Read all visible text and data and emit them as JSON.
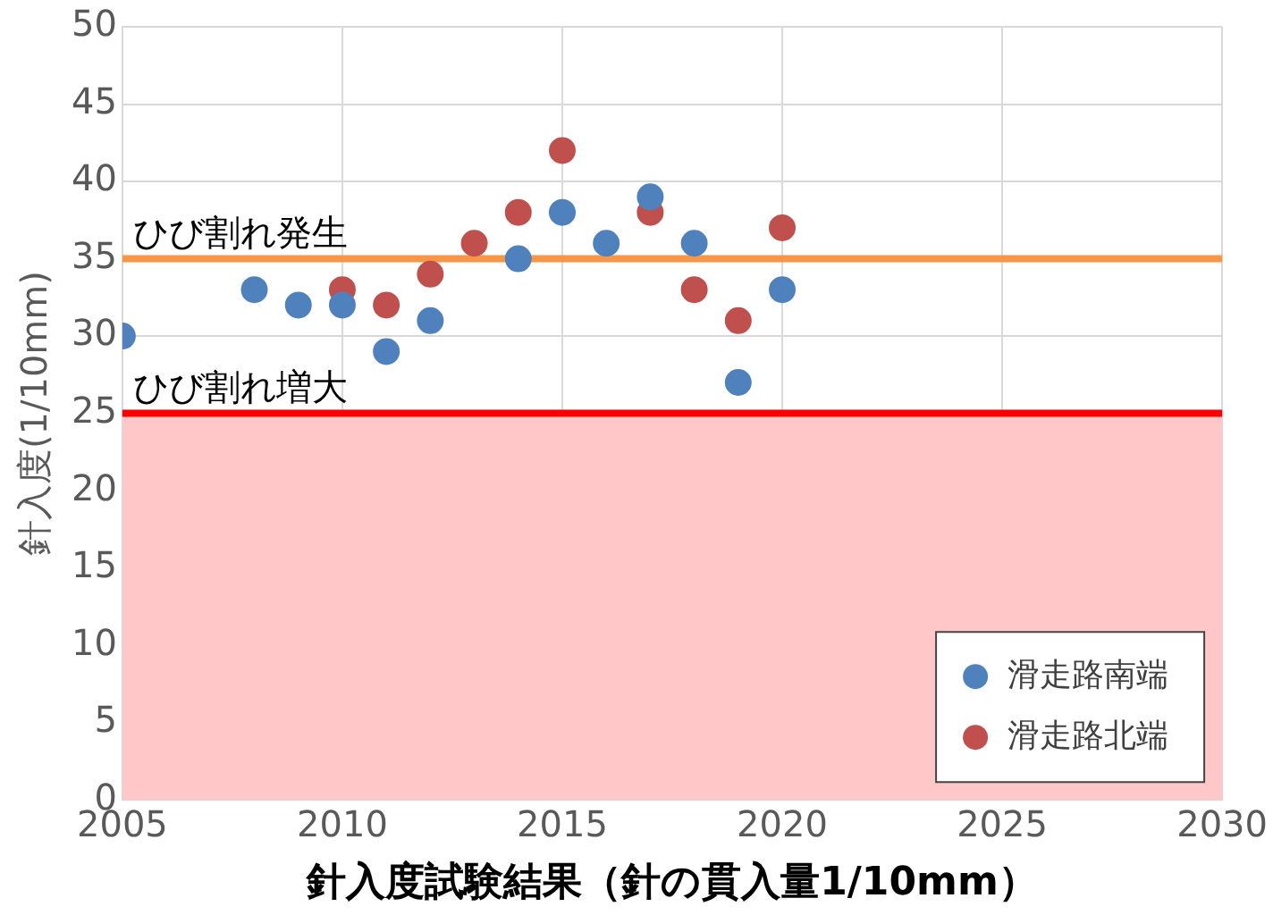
{
  "chart_data": {
    "type": "scatter",
    "xlabel": "針入度試験結果（針の貫入量1/10mm）",
    "ylabel": "針入度(1/10mm)",
    "xlim": [
      2005,
      2030
    ],
    "xticks": [
      2005,
      2010,
      2015,
      2020,
      2025,
      2030
    ],
    "ylim": [
      0,
      50
    ],
    "yticks": [
      0,
      5,
      10,
      15,
      20,
      25,
      30,
      35,
      40,
      45,
      50
    ],
    "grid": true,
    "legend": "bottom right",
    "marker": "circle",
    "series": [
      {
        "name": "滑走路南端",
        "color": "#4f81bd",
        "x": [
          2005,
          2008,
          2009,
          2010,
          2011,
          2012,
          2014,
          2015,
          2016,
          2017,
          2018,
          2019,
          2020
        ],
        "values": [
          30,
          33,
          32,
          32,
          29,
          31,
          35,
          38,
          36,
          39,
          36,
          27,
          33
        ]
      },
      {
        "name": "滑走路北端",
        "color": "#c0504d",
        "x": [
          2010,
          2011,
          2012,
          2013,
          2014,
          2015,
          2017,
          2018,
          2019,
          2020
        ],
        "values": [
          33,
          32,
          34,
          36,
          38,
          42,
          38,
          33,
          31,
          37
        ]
      }
    ],
    "ref_lines": [
      {
        "axis": "y",
        "value": 35,
        "label": "ひび割れ発生",
        "color": "#f79646"
      },
      {
        "axis": "y",
        "value": 25,
        "label": "ひび割れ増大",
        "color": "#ff0000"
      }
    ],
    "bands": [
      {
        "axis": "y",
        "from": 0,
        "to": 25,
        "color": "#ffc7c7"
      }
    ]
  }
}
